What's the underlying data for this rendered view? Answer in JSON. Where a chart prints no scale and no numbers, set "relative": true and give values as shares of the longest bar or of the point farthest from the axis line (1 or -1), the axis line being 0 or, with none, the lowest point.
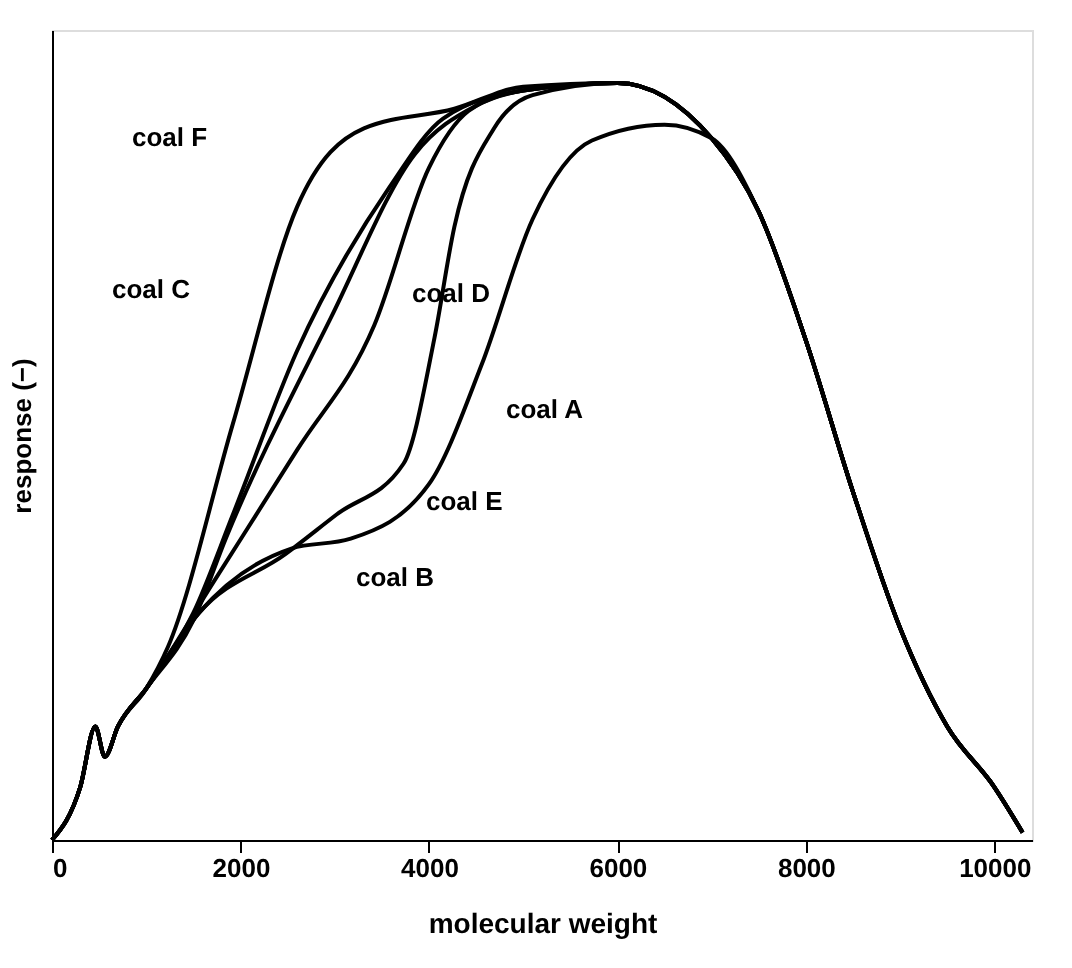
{
  "chart_data": {
    "type": "line",
    "xlabel": "molecular weight",
    "ylabel": "response (−)",
    "relative": true,
    "xlim": [
      0,
      10400
    ],
    "xticks": [
      0,
      2000,
      4000,
      6000,
      8000,
      10000
    ],
    "grid": false,
    "legend": false,
    "series": [
      {
        "color": "#000000",
        "x": [
          0,
          300,
          460,
          560,
          700,
          1000,
          1230,
          1920,
          2600,
          3310,
          4270,
          5000,
          6000,
          7000,
          7500,
          8000,
          8500,
          9000,
          9500,
          10000,
          10300
        ],
        "values": [
          0,
          0.07,
          0.15,
          0.11,
          0.15,
          0.2,
          0.255,
          0.55,
          0.836,
          0.94,
          0.966,
          0.995,
          1.0,
          0.927,
          0.83,
          0.66,
          0.46,
          0.28,
          0.15,
          0.07,
          0.01
        ]
      },
      {
        "color": "#000000",
        "x": [
          0,
          300,
          460,
          560,
          700,
          1000,
          1500,
          1920,
          2600,
          3580,
          4150,
          5000,
          6000,
          7000,
          7500,
          8000,
          8500,
          9000,
          9500,
          10000,
          10300
        ],
        "values": [
          0,
          0.07,
          0.15,
          0.11,
          0.15,
          0.2,
          0.3,
          0.43,
          0.646,
          0.862,
          0.953,
          0.99,
          1.0,
          0.927,
          0.83,
          0.66,
          0.46,
          0.28,
          0.15,
          0.07,
          0.01
        ]
      },
      {
        "color": "#000000",
        "x": [
          0,
          300,
          460,
          560,
          700,
          1000,
          1500,
          1850,
          2960,
          3850,
          4500,
          5000,
          6000,
          7000,
          7500,
          8000,
          8500,
          9000,
          9500,
          10000,
          10300
        ],
        "values": [
          0,
          0.07,
          0.15,
          0.11,
          0.15,
          0.2,
          0.29,
          0.4,
          0.69,
          0.906,
          0.97,
          0.99,
          1.0,
          0.927,
          0.83,
          0.66,
          0.46,
          0.28,
          0.15,
          0.07,
          0.01
        ]
      },
      {
        "color": "#000000",
        "x": [
          0,
          300,
          460,
          560,
          700,
          1000,
          1710,
          2600,
          3420,
          4000,
          4420,
          5000,
          6000,
          7000,
          7500,
          8000,
          8500,
          9000,
          9500,
          10000,
          10300
        ],
        "values": [
          0,
          0.07,
          0.15,
          0.11,
          0.15,
          0.2,
          0.34,
          0.515,
          0.68,
          0.888,
          0.963,
          0.99,
          1.0,
          0.927,
          0.83,
          0.66,
          0.46,
          0.28,
          0.15,
          0.07,
          0.01
        ]
      },
      {
        "color": "#000000",
        "x": [
          0,
          300,
          460,
          560,
          700,
          1000,
          1560,
          2480,
          3020,
          3730,
          4060,
          4270,
          4690,
          5100,
          6000,
          7000,
          7500,
          8000,
          8500,
          9000,
          9500,
          10000,
          10300
        ],
        "values": [
          0,
          0.07,
          0.15,
          0.11,
          0.15,
          0.2,
          0.3,
          0.378,
          0.43,
          0.497,
          0.664,
          0.81,
          0.94,
          0.984,
          1.0,
          0.927,
          0.83,
          0.66,
          0.46,
          0.28,
          0.15,
          0.07,
          0.01
        ]
      },
      {
        "color": "#000000",
        "x": [
          0,
          300,
          460,
          560,
          700,
          1000,
          1560,
          2540,
          3170,
          4000,
          4560,
          5100,
          5730,
          6500,
          7000,
          7500,
          8000,
          8500,
          9000,
          9500,
          10000,
          10300
        ],
        "values": [
          0,
          0.07,
          0.15,
          0.11,
          0.15,
          0.2,
          0.3,
          0.385,
          0.398,
          0.47,
          0.628,
          0.82,
          0.924,
          0.945,
          0.927,
          0.83,
          0.66,
          0.46,
          0.28,
          0.15,
          0.07,
          0.01
        ]
      }
    ],
    "annotations": [
      "coal F",
      "coal C",
      "coal D",
      "coal A",
      "coal E",
      "coal B"
    ]
  }
}
